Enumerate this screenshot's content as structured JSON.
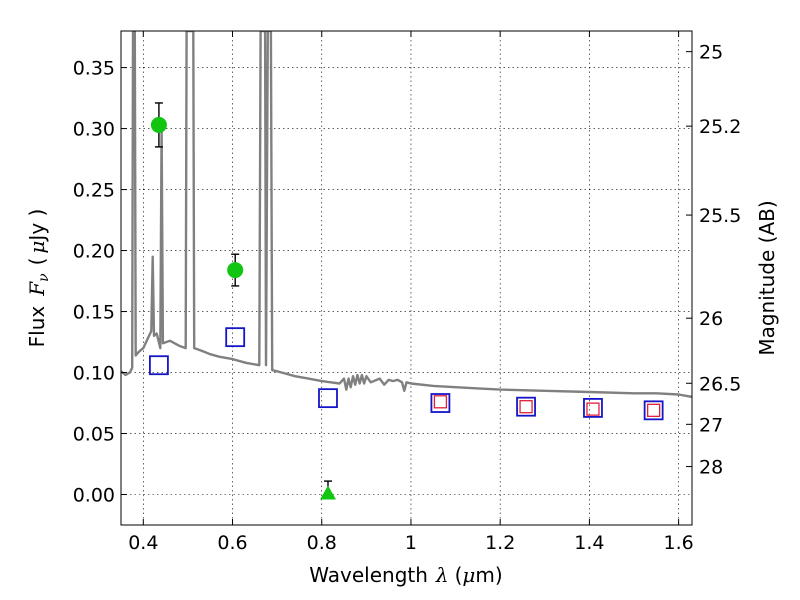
{
  "chart_data": {
    "type": "scatter",
    "title": "",
    "xlabel": "Wavelength",
    "xlabel_symbol": "λ",
    "xlabel_unit_open": "(",
    "xlabel_unit_mu": "μ",
    "xlabel_unit_close": "m)",
    "ylabel": "Flux",
    "ylabel_symbol": "F",
    "ylabel_sub": "ν",
    "ylabel_unit_open": "(",
    "ylabel_unit_mu": "μ",
    "ylabel_unit_close": "Jy )",
    "ylabel_right": "Magnitude (AB)",
    "xlim": [
      0.35,
      1.63
    ],
    "ylim": [
      -0.025,
      0.38
    ],
    "grid": true,
    "x_ticks": [
      0.4,
      0.6,
      0.8,
      1.0,
      1.2,
      1.4,
      1.6
    ],
    "x_tick_labels": [
      "0.4",
      "0.6",
      "0.8",
      "1",
      "1.2",
      "1.4",
      "1.6"
    ],
    "y_ticks": [
      0.0,
      0.05,
      0.1,
      0.15,
      0.2,
      0.25,
      0.3,
      0.35
    ],
    "y_tick_labels": [
      "0.00",
      "0.05",
      "0.10",
      "0.15",
      "0.20",
      "0.25",
      "0.30",
      "0.35"
    ],
    "right_ticks": [
      {
        "label": "25",
        "mag": 25.0
      },
      {
        "label": "25.2",
        "mag": 25.2
      },
      {
        "label": "25.5",
        "mag": 25.5
      },
      {
        "label": "26",
        "mag": 26.0
      },
      {
        "label": "26.5",
        "mag": 26.5
      },
      {
        "label": "27",
        "mag": 27.0
      },
      {
        "label": "28",
        "mag": 28.0
      }
    ],
    "series": [
      {
        "name": "Observed photometry",
        "marker": "circle",
        "color": "#11c511",
        "points": [
          {
            "x": 0.435,
            "y": 0.303,
            "err": 0.018
          },
          {
            "x": 0.606,
            "y": 0.184,
            "err": 0.013
          }
        ]
      },
      {
        "name": "Upper limit",
        "marker": "triangle",
        "color": "#11c511",
        "points": [
          {
            "x": 0.814,
            "y": 0.0,
            "err": 0.011
          }
        ]
      },
      {
        "name": "Model photometry (blue)",
        "marker": "open-square",
        "color": "#1515c8",
        "points": [
          {
            "x": 0.435,
            "y": 0.106
          },
          {
            "x": 0.606,
            "y": 0.129
          },
          {
            "x": 0.814,
            "y": 0.079
          },
          {
            "x": 1.066,
            "y": 0.075
          },
          {
            "x": 1.258,
            "y": 0.072
          },
          {
            "x": 1.408,
            "y": 0.071
          },
          {
            "x": 1.544,
            "y": 0.069
          }
        ]
      },
      {
        "name": "Model photometry (red)",
        "marker": "open-square-small",
        "color": "#e0203a",
        "points": [
          {
            "x": 1.066,
            "y": 0.076
          },
          {
            "x": 1.258,
            "y": 0.072
          },
          {
            "x": 1.408,
            "y": 0.07
          },
          {
            "x": 1.544,
            "y": 0.069
          }
        ]
      }
    ],
    "spectrum": {
      "name": "Model spectrum",
      "color": "#808080",
      "points": [
        [
          0.35,
          0.101
        ],
        [
          0.36,
          0.098
        ],
        [
          0.37,
          0.1
        ],
        [
          0.375,
          0.104
        ],
        [
          0.377,
          0.38
        ],
        [
          0.381,
          0.38
        ],
        [
          0.383,
          0.114
        ],
        [
          0.39,
          0.117
        ],
        [
          0.4,
          0.12
        ],
        [
          0.41,
          0.128
        ],
        [
          0.418,
          0.134
        ],
        [
          0.421,
          0.195
        ],
        [
          0.424,
          0.13
        ],
        [
          0.43,
          0.132
        ],
        [
          0.438,
          0.12
        ],
        [
          0.441,
          0.3
        ],
        [
          0.444,
          0.124
        ],
        [
          0.46,
          0.126
        ],
        [
          0.48,
          0.122
        ],
        [
          0.495,
          0.12
        ],
        [
          0.497,
          0.38
        ],
        [
          0.512,
          0.38
        ],
        [
          0.514,
          0.12
        ],
        [
          0.53,
          0.118
        ],
        [
          0.55,
          0.115
        ],
        [
          0.57,
          0.113
        ],
        [
          0.6,
          0.111
        ],
        [
          0.63,
          0.108
        ],
        [
          0.66,
          0.106
        ],
        [
          0.663,
          0.38
        ],
        [
          0.673,
          0.38
        ],
        [
          0.675,
          0.106
        ],
        [
          0.679,
          0.38
        ],
        [
          0.686,
          0.38
        ],
        [
          0.689,
          0.102
        ],
        [
          0.71,
          0.1
        ],
        [
          0.74,
          0.097
        ],
        [
          0.77,
          0.095
        ],
        [
          0.8,
          0.093
        ],
        [
          0.82,
          0.092
        ],
        [
          0.84,
          0.091
        ],
        [
          0.85,
          0.095
        ],
        [
          0.855,
          0.086
        ],
        [
          0.86,
          0.095
        ],
        [
          0.865,
          0.088
        ],
        [
          0.87,
          0.097
        ],
        [
          0.875,
          0.09
        ],
        [
          0.88,
          0.098
        ],
        [
          0.885,
          0.091
        ],
        [
          0.89,
          0.098
        ],
        [
          0.895,
          0.091
        ],
        [
          0.9,
          0.097
        ],
        [
          0.91,
          0.092
        ],
        [
          0.93,
          0.095
        ],
        [
          0.94,
          0.09
        ],
        [
          0.95,
          0.094
        ],
        [
          0.96,
          0.093
        ],
        [
          0.97,
          0.094
        ],
        [
          0.98,
          0.092
        ],
        [
          0.985,
          0.085
        ],
        [
          0.99,
          0.092
        ],
        [
          1.0,
          0.091
        ],
        [
          1.05,
          0.089
        ],
        [
          1.1,
          0.088
        ],
        [
          1.15,
          0.087
        ],
        [
          1.2,
          0.086
        ],
        [
          1.3,
          0.085
        ],
        [
          1.4,
          0.084
        ],
        [
          1.5,
          0.083
        ],
        [
          1.55,
          0.083
        ],
        [
          1.6,
          0.082
        ],
        [
          1.63,
          0.08
        ]
      ]
    }
  }
}
